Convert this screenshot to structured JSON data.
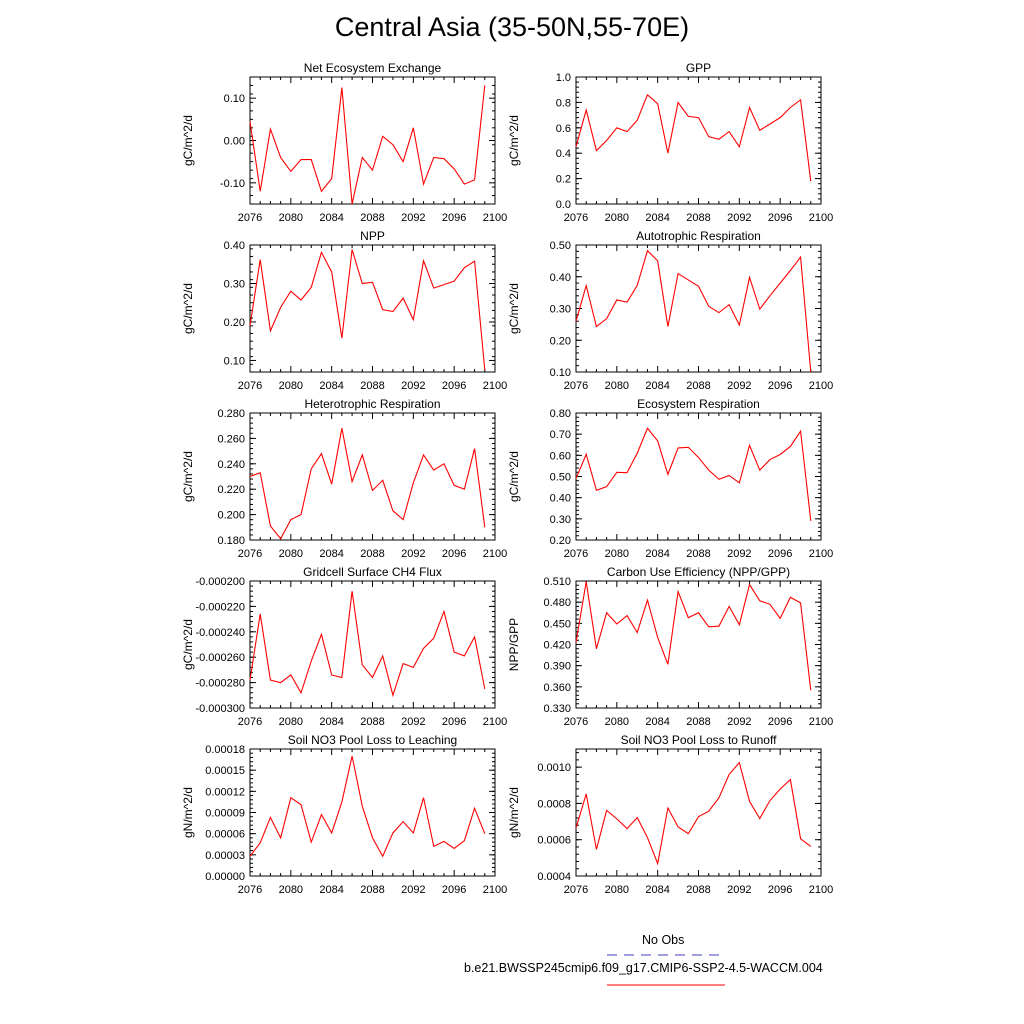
{
  "title": "Central Asia (35-50N,55-70E)",
  "legend": {
    "position": "bottom-right",
    "entries": [
      {
        "label": "No Obs",
        "color": "#6666cc",
        "style": "dashed"
      },
      {
        "label": "b.e21.BWSSP245cmip6.f09_g17.CMIP6-SSP2-4.5-WACCM.004",
        "color": "#ff3333",
        "style": "solid"
      }
    ]
  },
  "chart_data": [
    {
      "type": "line",
      "title": "Net Ecosystem Exchange",
      "ylabel": "gC/m^2/d",
      "xlim": [
        2076,
        2100
      ],
      "ylim": [
        -0.15,
        0.15
      ],
      "xticks": [
        "2076",
        "2080",
        "2084",
        "2088",
        "2092",
        "2096",
        "2100"
      ],
      "yticks": [
        -0.1,
        0.0,
        0.1
      ],
      "ytick_labels": [
        "-0.10",
        "0.00",
        "0.10"
      ],
      "x": [
        2076,
        2077,
        2078,
        2079,
        2080,
        2081,
        2082,
        2083,
        2084,
        2085,
        2086,
        2087,
        2088,
        2089,
        2090,
        2091,
        2092,
        2093,
        2094,
        2095,
        2096,
        2097,
        2098,
        2099
      ],
      "series": [
        {
          "color": "#ff0000",
          "values": [
            0.045,
            -0.12,
            0.027,
            -0.04,
            -0.073,
            -0.045,
            -0.045,
            -0.12,
            -0.09,
            0.125,
            -0.15,
            -0.04,
            -0.07,
            0.01,
            -0.01,
            -0.05,
            0.03,
            -0.103,
            -0.04,
            -0.043,
            -0.067,
            -0.103,
            -0.093,
            0.13
          ]
        }
      ]
    },
    {
      "type": "line",
      "title": "GPP",
      "ylabel": "gC/m^2/d",
      "xlim": [
        2076,
        2100
      ],
      "ylim": [
        0.0,
        1.0
      ],
      "xticks": [
        "2076",
        "2080",
        "2084",
        "2088",
        "2092",
        "2096",
        "2100"
      ],
      "yticks": [
        0.0,
        0.2,
        0.4,
        0.6,
        0.8,
        1.0
      ],
      "ytick_labels": [
        "0.0",
        "0.2",
        "0.4",
        "0.6",
        "0.8",
        "1.0"
      ],
      "x": [
        2076,
        2077,
        2078,
        2079,
        2080,
        2081,
        2082,
        2083,
        2084,
        2085,
        2086,
        2087,
        2088,
        2089,
        2090,
        2091,
        2092,
        2093,
        2094,
        2095,
        2096,
        2097,
        2098,
        2099
      ],
      "series": [
        {
          "color": "#ff0000",
          "values": [
            0.45,
            0.74,
            0.42,
            0.5,
            0.6,
            0.57,
            0.66,
            0.86,
            0.79,
            0.4,
            0.8,
            0.69,
            0.68,
            0.53,
            0.51,
            0.57,
            0.45,
            0.76,
            0.58,
            0.63,
            0.68,
            0.76,
            0.82,
            0.18
          ]
        }
      ]
    },
    {
      "type": "line",
      "title": "NPP",
      "ylabel": "gC/m^2/d",
      "xlim": [
        2076,
        2100
      ],
      "ylim": [
        0.07,
        0.4
      ],
      "xticks": [
        "2076",
        "2080",
        "2084",
        "2088",
        "2092",
        "2096",
        "2100"
      ],
      "yticks": [
        0.1,
        0.2,
        0.3,
        0.4
      ],
      "ytick_labels": [
        "0.10",
        "0.20",
        "0.30",
        "0.40"
      ],
      "x": [
        2076,
        2077,
        2078,
        2079,
        2080,
        2081,
        2082,
        2083,
        2084,
        2085,
        2086,
        2087,
        2088,
        2089,
        2090,
        2091,
        2092,
        2093,
        2094,
        2095,
        2096,
        2097,
        2098,
        2099
      ],
      "series": [
        {
          "color": "#ff0000",
          "values": [
            0.19,
            0.362,
            0.177,
            0.238,
            0.28,
            0.257,
            0.29,
            0.381,
            0.33,
            0.158,
            0.388,
            0.3,
            0.303,
            0.232,
            0.227,
            0.262,
            0.206,
            0.359,
            0.288,
            0.297,
            0.306,
            0.341,
            0.358,
            0.075
          ]
        }
      ]
    },
    {
      "type": "line",
      "title": "Autotrophic Respiration",
      "ylabel": "gC/m^2/d",
      "xlim": [
        2076,
        2100
      ],
      "ylim": [
        0.1,
        0.5
      ],
      "xticks": [
        "2076",
        "2080",
        "2084",
        "2088",
        "2092",
        "2096",
        "2100"
      ],
      "yticks": [
        0.1,
        0.2,
        0.3,
        0.4,
        0.5
      ],
      "ytick_labels": [
        "0.10",
        "0.20",
        "0.30",
        "0.40",
        "0.50"
      ],
      "x": [
        2076,
        2077,
        2078,
        2079,
        2080,
        2081,
        2082,
        2083,
        2084,
        2085,
        2086,
        2087,
        2088,
        2089,
        2090,
        2091,
        2092,
        2093,
        2094,
        2095,
        2096,
        2097,
        2098,
        2099
      ],
      "series": [
        {
          "color": "#ff0000",
          "values": [
            0.26,
            0.372,
            0.243,
            0.268,
            0.327,
            0.32,
            0.373,
            0.482,
            0.45,
            0.243,
            0.41,
            0.39,
            0.37,
            0.307,
            0.287,
            0.312,
            0.248,
            0.398,
            0.298,
            0.34,
            0.38,
            0.42,
            0.462,
            0.1
          ]
        }
      ]
    },
    {
      "type": "line",
      "title": "Heterotrophic Respiration",
      "ylabel": "gC/m^2/d",
      "xlim": [
        2076,
        2100
      ],
      "ylim": [
        0.18,
        0.28
      ],
      "xticks": [
        "2076",
        "2080",
        "2084",
        "2088",
        "2092",
        "2096",
        "2100"
      ],
      "yticks": [
        0.18,
        0.2,
        0.22,
        0.24,
        0.26,
        0.28
      ],
      "ytick_labels": [
        "0.180",
        "0.200",
        "0.220",
        "0.240",
        "0.260",
        "0.280"
      ],
      "x": [
        2076,
        2077,
        2078,
        2079,
        2080,
        2081,
        2082,
        2083,
        2084,
        2085,
        2086,
        2087,
        2088,
        2089,
        2090,
        2091,
        2092,
        2093,
        2094,
        2095,
        2096,
        2097,
        2098,
        2099
      ],
      "series": [
        {
          "color": "#ff0000",
          "values": [
            0.23,
            0.233,
            0.191,
            0.181,
            0.196,
            0.2,
            0.236,
            0.248,
            0.224,
            0.268,
            0.226,
            0.247,
            0.219,
            0.227,
            0.203,
            0.196,
            0.225,
            0.247,
            0.235,
            0.24,
            0.223,
            0.22,
            0.252,
            0.19
          ]
        }
      ]
    },
    {
      "type": "line",
      "title": "Ecosystem Respiration",
      "ylabel": "gC/m^2/d",
      "xlim": [
        2076,
        2100
      ],
      "ylim": [
        0.2,
        0.8
      ],
      "xticks": [
        "2076",
        "2080",
        "2084",
        "2088",
        "2092",
        "2096",
        "2100"
      ],
      "yticks": [
        0.2,
        0.3,
        0.4,
        0.5,
        0.6,
        0.7,
        0.8
      ],
      "ytick_labels": [
        "0.20",
        "0.30",
        "0.40",
        "0.50",
        "0.60",
        "0.70",
        "0.80"
      ],
      "x": [
        2076,
        2077,
        2078,
        2079,
        2080,
        2081,
        2082,
        2083,
        2084,
        2085,
        2086,
        2087,
        2088,
        2089,
        2090,
        2091,
        2092,
        2093,
        2094,
        2095,
        2096,
        2097,
        2098,
        2099
      ],
      "series": [
        {
          "color": "#ff0000",
          "values": [
            0.49,
            0.605,
            0.435,
            0.452,
            0.52,
            0.518,
            0.61,
            0.728,
            0.668,
            0.51,
            0.635,
            0.638,
            0.59,
            0.53,
            0.487,
            0.505,
            0.47,
            0.647,
            0.53,
            0.58,
            0.604,
            0.642,
            0.714,
            0.29
          ]
        }
      ]
    },
    {
      "type": "line",
      "title": "Gridcell Surface CH4 Flux",
      "ylabel": "gC/m^2/d",
      "xlim": [
        2076,
        2100
      ],
      "ylim": [
        -0.0003,
        -0.0002
      ],
      "xticks": [
        "2076",
        "2080",
        "2084",
        "2088",
        "2092",
        "2096",
        "2100"
      ],
      "yticks": [
        -0.0003,
        -0.00028,
        -0.00026,
        -0.00024,
        -0.00022,
        -0.0002
      ],
      "ytick_labels": [
        "-0.000300",
        "-0.000280",
        "-0.000260",
        "-0.000240",
        "-0.000220",
        "-0.000200"
      ],
      "x": [
        2076,
        2077,
        2078,
        2079,
        2080,
        2081,
        2082,
        2083,
        2084,
        2085,
        2086,
        2087,
        2088,
        2089,
        2090,
        2091,
        2092,
        2093,
        2094,
        2095,
        2096,
        2097,
        2098,
        2099
      ],
      "series": [
        {
          "color": "#ff0000",
          "values": [
            -0.000278,
            -0.000226,
            -0.000278,
            -0.00028,
            -0.000274,
            -0.000288,
            -0.000263,
            -0.000242,
            -0.000274,
            -0.000276,
            -0.000208,
            -0.000266,
            -0.000276,
            -0.000259,
            -0.00029,
            -0.000265,
            -0.000268,
            -0.000253,
            -0.000245,
            -0.000224,
            -0.000256,
            -0.000259,
            -0.000244,
            -0.000285
          ]
        }
      ]
    },
    {
      "type": "line",
      "title": "Carbon Use Efficiency (NPP/GPP)",
      "ylabel": "NPP/GPP",
      "xlim": [
        2076,
        2100
      ],
      "ylim": [
        0.33,
        0.51
      ],
      "xticks": [
        "2076",
        "2080",
        "2084",
        "2088",
        "2092",
        "2096",
        "2100"
      ],
      "yticks": [
        0.33,
        0.36,
        0.39,
        0.42,
        0.45,
        0.48,
        0.51
      ],
      "ytick_labels": [
        "0.330",
        "0.360",
        "0.390",
        "0.420",
        "0.450",
        "0.480",
        "0.510"
      ],
      "x": [
        2076,
        2077,
        2078,
        2079,
        2080,
        2081,
        2082,
        2083,
        2084,
        2085,
        2086,
        2087,
        2088,
        2089,
        2090,
        2091,
        2092,
        2093,
        2094,
        2095,
        2096,
        2097,
        2098,
        2099
      ],
      "series": [
        {
          "color": "#ff0000",
          "values": [
            0.423,
            0.509,
            0.414,
            0.465,
            0.449,
            0.461,
            0.437,
            0.483,
            0.43,
            0.392,
            0.495,
            0.458,
            0.465,
            0.445,
            0.446,
            0.474,
            0.448,
            0.505,
            0.482,
            0.477,
            0.457,
            0.487,
            0.479,
            0.355
          ]
        }
      ]
    },
    {
      "type": "line",
      "title": "Soil NO3 Pool Loss to Leaching",
      "ylabel": "gN/m^2/d",
      "xlim": [
        2076,
        2100
      ],
      "ylim": [
        0.0,
        0.00018
      ],
      "xticks": [
        "2076",
        "2080",
        "2084",
        "2088",
        "2092",
        "2096",
        "2100"
      ],
      "yticks": [
        0,
        3e-05,
        6e-05,
        9e-05,
        0.00012,
        0.00015,
        0.00018
      ],
      "ytick_labels": [
        "0.00000",
        "0.00003",
        "0.00006",
        "0.00009",
        "0.00012",
        "0.00015",
        "0.00018"
      ],
      "x": [
        2076,
        2077,
        2078,
        2079,
        2080,
        2081,
        2082,
        2083,
        2084,
        2085,
        2086,
        2087,
        2088,
        2089,
        2090,
        2091,
        2092,
        2093,
        2094,
        2095,
        2096,
        2097,
        2098,
        2099
      ],
      "series": [
        {
          "color": "#ff0000",
          "values": [
            2.8e-05,
            4.7e-05,
            8.3e-05,
            5.4e-05,
            0.000111,
            0.000101,
            4.8e-05,
            8.7e-05,
            6.1e-05,
            0.000105,
            0.00017,
            9.9e-05,
            5.4e-05,
            2.8e-05,
            6.1e-05,
            7.7e-05,
            6.1e-05,
            0.000111,
            4.2e-05,
            4.9e-05,
            3.9e-05,
            5e-05,
            9.6e-05,
            6e-05
          ]
        }
      ]
    },
    {
      "type": "line",
      "title": "Soil NO3 Pool Loss to Runoff",
      "ylabel": "gN/m^2/d",
      "xlim": [
        2076,
        2100
      ],
      "ylim": [
        0.0004,
        0.0011
      ],
      "xticks": [
        "2076",
        "2080",
        "2084",
        "2088",
        "2092",
        "2096",
        "2100"
      ],
      "yticks": [
        0.0004,
        0.0006,
        0.0008,
        0.001
      ],
      "ytick_labels": [
        "0.0004",
        "0.0006",
        "0.0008",
        "0.0010"
      ],
      "x": [
        2076,
        2077,
        2078,
        2079,
        2080,
        2081,
        2082,
        2083,
        2084,
        2085,
        2086,
        2087,
        2088,
        2089,
        2090,
        2091,
        2092,
        2093,
        2094,
        2095,
        2096,
        2097,
        2098,
        2099
      ],
      "series": [
        {
          "color": "#ff0000",
          "values": [
            0.000665,
            0.000852,
            0.000547,
            0.000762,
            0.000715,
            0.000661,
            0.000722,
            0.000612,
            0.000469,
            0.000775,
            0.000671,
            0.000633,
            0.000727,
            0.000757,
            0.000831,
            0.00096,
            0.001025,
            0.000811,
            0.000717,
            0.000816,
            0.000879,
            0.000932,
            0.000605,
            0.000563
          ]
        }
      ]
    }
  ]
}
